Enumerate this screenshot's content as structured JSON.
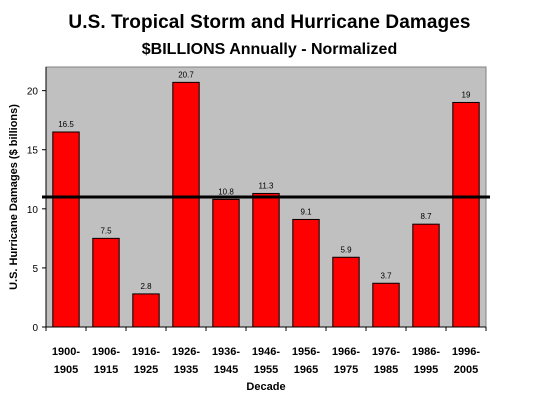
{
  "chart_data": {
    "type": "bar",
    "title": "U.S. Tropical Storm and Hurricane Damages",
    "subtitle": "$BILLIONS Annually - Normalized",
    "xlabel": "Decade",
    "ylabel": "U.S. Hurricane Damages ($ billions)",
    "categories": [
      [
        "1900-",
        "1905"
      ],
      [
        "1906-",
        "1915"
      ],
      [
        "1916-",
        "1925"
      ],
      [
        "1926-",
        "1935"
      ],
      [
        "1936-",
        "1945"
      ],
      [
        "1946-",
        "1955"
      ],
      [
        "1956-",
        "1965"
      ],
      [
        "1966-",
        "1975"
      ],
      [
        "1976-",
        "1985"
      ],
      [
        "1986-",
        "1995"
      ],
      [
        "1996-",
        "2005"
      ]
    ],
    "values": [
      16.5,
      7.5,
      2.8,
      20.7,
      10.8,
      11.3,
      9.1,
      5.9,
      3.7,
      8.7,
      19
    ],
    "value_labels": [
      "16.5",
      "7.5",
      "2.8",
      "20.7",
      "10.8",
      "11.3",
      "9.1",
      "5.9",
      "3.7",
      "8.7",
      "19"
    ],
    "ylim": [
      0,
      22
    ],
    "yticks": [
      0,
      5,
      10,
      15,
      20
    ],
    "reference_line": 11,
    "grid": false,
    "legend": "none",
    "colors": {
      "bar": "#ff0000",
      "bar_edge": "#000000",
      "plot_background": "#c0c0c0",
      "reference_line": "#000000"
    }
  }
}
